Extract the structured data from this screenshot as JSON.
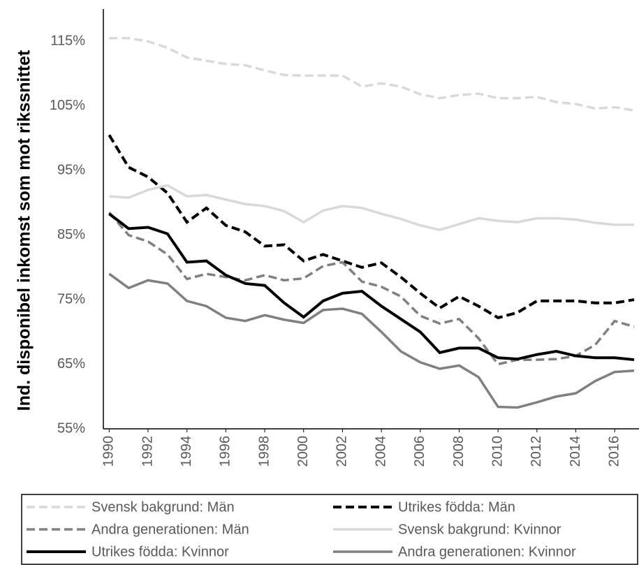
{
  "chart_data": {
    "type": "line",
    "y_label": "Ind. disponibel inkomst som mot rikssnittet",
    "x": [
      1990,
      1991,
      1992,
      1993,
      1994,
      1995,
      1996,
      1997,
      1998,
      1999,
      2000,
      2001,
      2002,
      2003,
      2004,
      2005,
      2006,
      2007,
      2008,
      2009,
      2010,
      2011,
      2012,
      2013,
      2014,
      2015,
      2016,
      2017
    ],
    "xlim": [
      1989.7,
      2017.25
    ],
    "xticks": [
      1990,
      1992,
      1994,
      1996,
      1998,
      2000,
      2002,
      2004,
      2006,
      2008,
      2010,
      2012,
      2014,
      2016
    ],
    "ylim": [
      55,
      120
    ],
    "yticks": [
      {
        "value": 55,
        "label": "55%"
      },
      {
        "value": 65,
        "label": "65%"
      },
      {
        "value": 75,
        "label": "75%"
      },
      {
        "value": 85,
        "label": "85%"
      },
      {
        "value": 95,
        "label": "95%"
      },
      {
        "value": 105,
        "label": "105%"
      },
      {
        "value": 115,
        "label": "115%"
      }
    ],
    "grid": false,
    "legend": "bottom",
    "series": [
      {
        "name": "Svensk bakgrund: Män",
        "color": "#d9d9d9",
        "style": "dashed",
        "values": [
          115.5,
          115.5,
          115,
          114,
          112.5,
          112,
          111.5,
          111.3,
          110.5,
          109.8,
          109.7,
          109.7,
          109.7,
          108,
          108.5,
          108,
          106.8,
          106.2,
          106.7,
          106.9,
          106.2,
          106.2,
          106.4,
          105.6,
          105.3,
          104.6,
          104.8,
          104.3
        ]
      },
      {
        "name": "Utrikes födda: Män",
        "color": "#000000",
        "style": "dashed",
        "values": [
          100.5,
          95.5,
          94,
          91.5,
          87,
          89.2,
          86.5,
          85.5,
          83.3,
          83.5,
          81,
          82,
          81,
          80,
          80.7,
          78.5,
          76,
          73.7,
          75.5,
          74,
          72.2,
          73,
          74.8,
          74.8,
          74.8,
          74.5,
          74.5,
          75
        ]
      },
      {
        "name": "Andra generationen: Män",
        "color": "#808080",
        "style": "dashed",
        "values": [
          88.5,
          85,
          84,
          82,
          78.2,
          79,
          78.5,
          78,
          78.8,
          78,
          78.3,
          80.2,
          80.8,
          77.8,
          77,
          75.5,
          72.5,
          71.3,
          72,
          69,
          65,
          65.7,
          65.7,
          65.8,
          66.3,
          68,
          71.7,
          70.8
        ]
      },
      {
        "name": "Svensk bakgrund: Kvinnor",
        "color": "#d9d9d9",
        "style": "solid",
        "values": [
          91,
          90.8,
          92,
          92.7,
          91,
          91.2,
          90.5,
          89.8,
          89.5,
          88.7,
          87,
          88.8,
          89.5,
          89.2,
          88.3,
          87.5,
          86.5,
          85.8,
          86.7,
          87.6,
          87.2,
          87,
          87.6,
          87.6,
          87.4,
          86.9,
          86.6,
          86.6
        ]
      },
      {
        "name": "Utrikes födda: Kvinnor",
        "color": "#000000",
        "style": "solid",
        "values": [
          88.3,
          86,
          86.2,
          85.2,
          80.8,
          81,
          78.8,
          77.5,
          77.2,
          74.5,
          72.3,
          74.8,
          76,
          76.3,
          74,
          72,
          70,
          66.8,
          67.5,
          67.5,
          66,
          65.8,
          66.5,
          67,
          66.3,
          66,
          66,
          65.7
        ]
      },
      {
        "name": "Andra generationen: Kvinnor",
        "color": "#808080",
        "style": "solid",
        "values": [
          79,
          76.8,
          78,
          77.5,
          74.8,
          74,
          72.2,
          71.7,
          72.6,
          71.9,
          71.4,
          73.4,
          73.6,
          72.8,
          70,
          67,
          65.3,
          64.3,
          64.8,
          63,
          58.4,
          58.3,
          59.1,
          60,
          60.5,
          62.4,
          63.8,
          64
        ]
      }
    ]
  }
}
